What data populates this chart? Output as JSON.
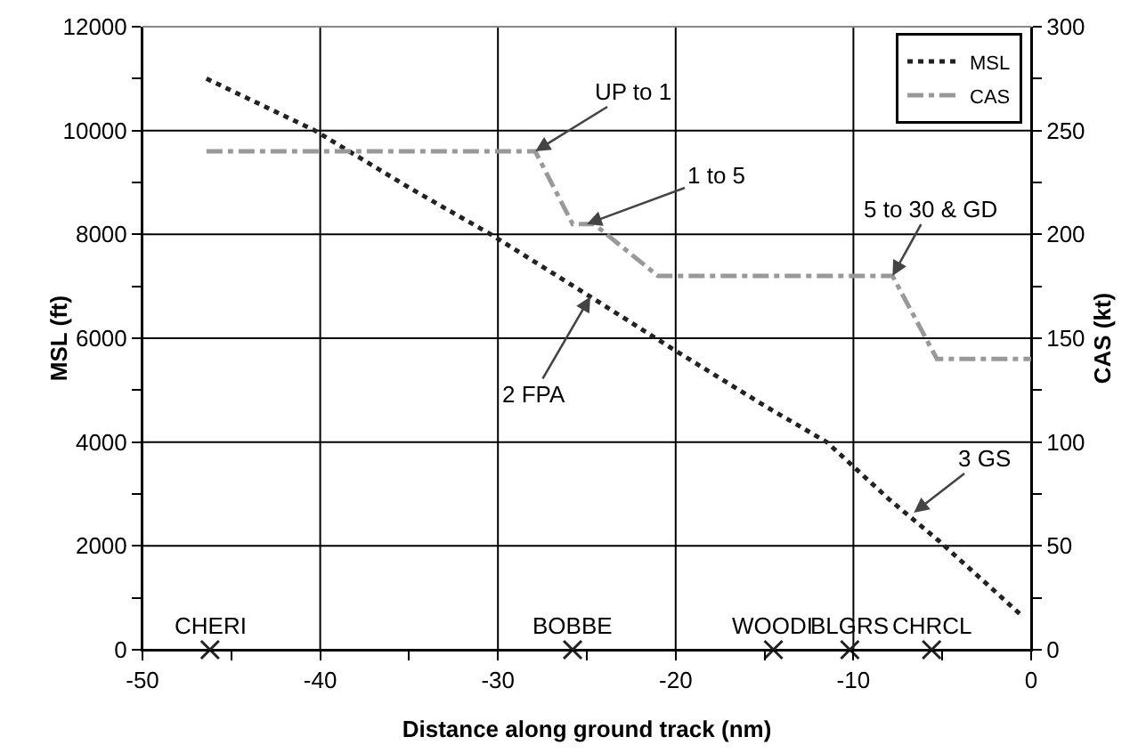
{
  "chart_data": {
    "type": "line",
    "xlabel": "Distance along ground track (nm)",
    "ylabel": "MSL (ft)",
    "y2label": "CAS (kt)",
    "xlim": [
      -50,
      0
    ],
    "xticks": [
      -50,
      {
        "value": -45,
        "label": null
      },
      -40,
      {
        "value": -35,
        "label": null
      },
      -30,
      {
        "value": -25,
        "label": null
      },
      -20,
      {
        "value": -15,
        "label": null
      },
      -10,
      {
        "value": -5,
        "label": null
      },
      0
    ],
    "ylim": [
      0,
      12000
    ],
    "yticks": [
      0,
      {
        "value": 1000,
        "label": null
      },
      2000,
      {
        "value": 3000,
        "label": null
      },
      4000,
      {
        "value": 5000,
        "label": null
      },
      6000,
      {
        "value": 7000,
        "label": null
      },
      8000,
      {
        "value": 9000,
        "label": null
      },
      10000,
      {
        "value": 11000,
        "label": null
      },
      12000
    ],
    "y2lim": [
      0,
      300
    ],
    "y2ticks": [
      0,
      {
        "value": 25,
        "label": null
      },
      50,
      {
        "value": 75,
        "label": null
      },
      100,
      {
        "value": 125,
        "label": null
      },
      150,
      {
        "value": 175,
        "label": null
      },
      200,
      {
        "value": 225,
        "label": null
      },
      250,
      {
        "value": 275,
        "label": null
      },
      300
    ],
    "grid": true,
    "legend": "top right",
    "series": [
      {
        "name": "MSL",
        "color": "#222222",
        "line_style": "dotted",
        "marker": "none",
        "x": [
          -46.4,
          -40.3,
          -35,
          -30.4,
          -24.8,
          -20.2,
          -15,
          -11.5,
          -8,
          -5.2,
          -0.5
        ],
        "values": [
          11000,
          10000,
          8900,
          8000,
          6800,
          5800,
          4700,
          4000,
          2900,
          2100,
          650
        ]
      },
      {
        "name": "CAS",
        "color": "#999999",
        "line_style": "dashed",
        "marker": "none",
        "axis": "y2",
        "x": [
          -46.4,
          -27.9,
          -25.8,
          -24.6,
          -21,
          -7.8,
          -5.3,
          0
        ],
        "values": [
          240,
          240,
          205,
          205,
          180,
          180,
          140,
          140
        ]
      },
      {
        "type": "scatter",
        "color": "#222222",
        "marker": "cross",
        "x": [
          -46.2,
          -25.8,
          -14.5,
          -10.2,
          -5.6
        ],
        "values": [
          0,
          0,
          0,
          0,
          0
        ]
      }
    ],
    "annotations": [
      {
        "text": "UP to 1",
        "x": -27.9,
        "y": 9600
      },
      {
        "text": "1 to 5",
        "x": -25,
        "y": 8200
      },
      {
        "text": "5 to 30 & GD",
        "x": -7.8,
        "y": 7200
      },
      {
        "text": "2 FPA",
        "x": -24.8,
        "y": 6800
      },
      {
        "text": "3 GS",
        "x": -6.6,
        "y": 2640
      },
      {
        "text": "CHERI",
        "x": -46.2,
        "y": 0
      },
      {
        "text": "BOBBE",
        "x": -25.8,
        "y": 0
      },
      {
        "text": "WOODI",
        "x": -14.5,
        "y": 0
      },
      {
        "text": "BLGRS",
        "x": -10.2,
        "y": 0
      },
      {
        "text": "CHRCL",
        "x": -5.6,
        "y": 0
      }
    ]
  }
}
